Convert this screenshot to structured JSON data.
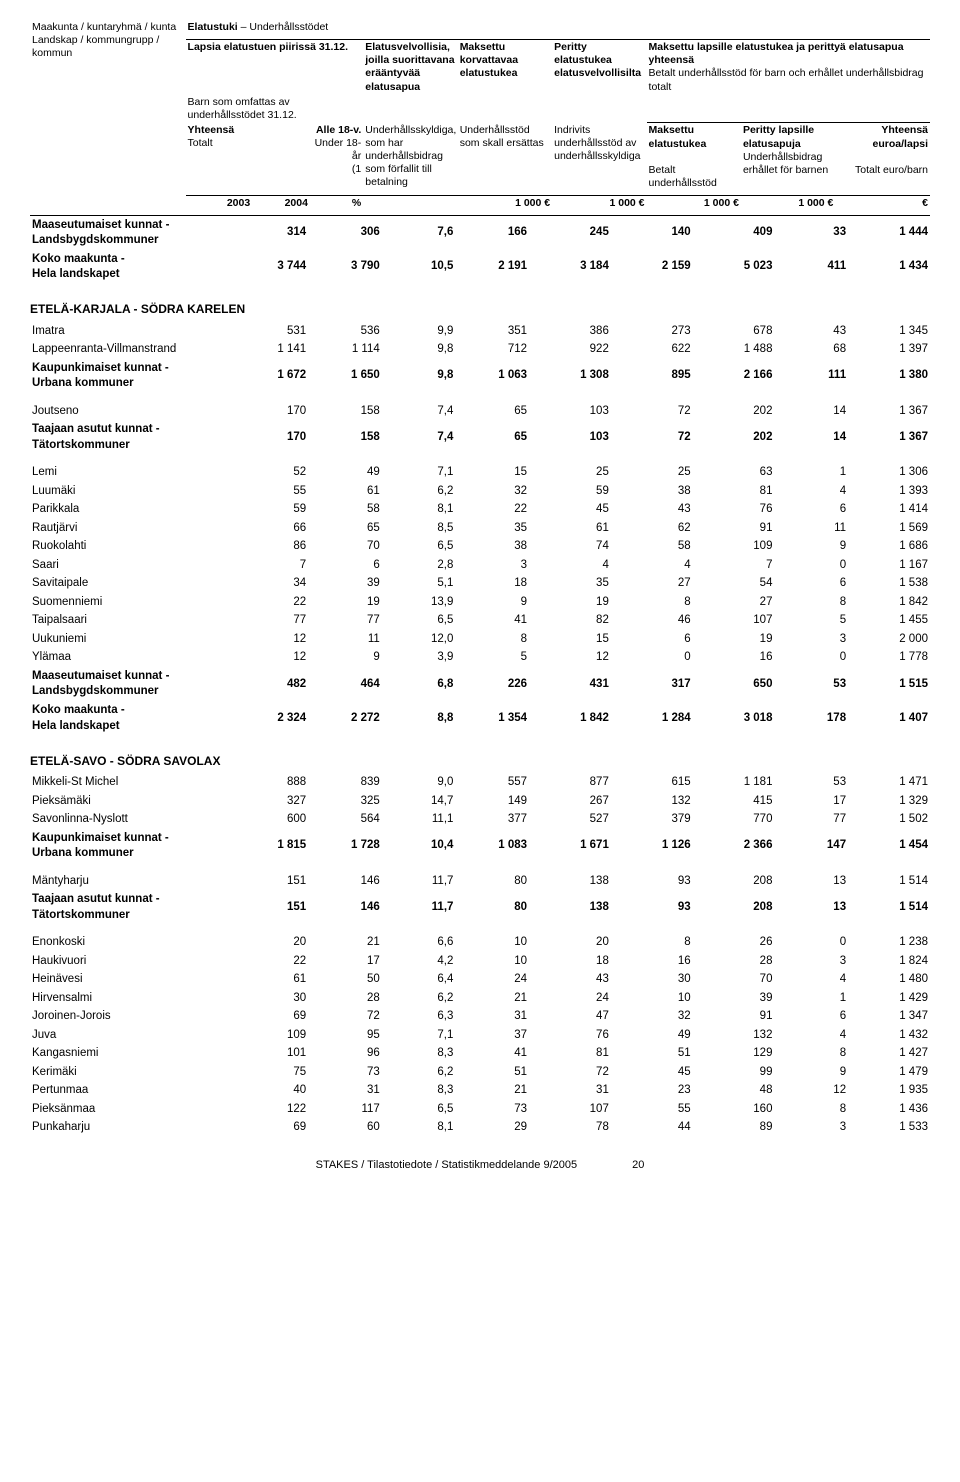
{
  "header": {
    "col1_fi": "Maakunta / kuntaryhmä / kunta",
    "col1_sv": "Landskap / kommungrupp / kommun",
    "top_fi": "Elatustuki",
    "top_sep": "–",
    "top_sv": "Underhållsstödet",
    "col2_fi_1": "Lapsia elatustuen piirissä 31.12.",
    "col2_sv_1": "Barn som omfattas av underhållsstödet 31.12.",
    "col2_fi_yht": "Yhteensä",
    "col2_sv_tot": "Totalt",
    "col3_fi": "Alle 18-v.",
    "col3_sv": "Under 18-år",
    "col3_unit": "(1",
    "col4_fi": "Elatusvelvollisia, joilla suorittavana erääntyvää elatusapua",
    "col4_sv": "Underhållsskyldiga, som har underhållsbidrag som förfallit till betalning",
    "col5_fi": "Maksettu korvattavaa elatustukea",
    "col5_sv": "Underhållsstöd som skall ersättas",
    "col6_fi": "Peritty elatustukea elatusvelvollisilta",
    "col6_sv": "Indrivits underhållsstöd av underhållsskyldiga",
    "col789_fi": "Maksettu lapsille elatustukea ja perittyä elatusapua yhteensä",
    "col789_sv": "Betalt underhållsstöd för barn och erhållet underhållsbidrag totalt",
    "col7_fi": "Maksettu elatustukea",
    "col7_sv": "Betalt underhållsstöd",
    "col8_fi": "Peritty lapsille elatusapuja",
    "col8_sv": "Underhållsbidrag erhållet för barnen",
    "col9_fi": "Yhteensä euroa/lapsi",
    "col9_sv": "Totalt euro/barn",
    "yr_2003": "2003",
    "yr_2004": "2004",
    "pct": "%",
    "u1000": "1 000 €",
    "eur": "€"
  },
  "intro_rows": [
    {
      "label": "Maaseutumaiset kunnat - Landsbygdskommuner",
      "bold": true,
      "c": [
        "314",
        "306",
        "7,6",
        "166",
        "245",
        "140",
        "409",
        "33",
        "1 444"
      ]
    },
    {
      "label": "Koko maakunta - Hela landskapet",
      "bold": true,
      "c": [
        "3 744",
        "3 790",
        "10,5",
        "2 191",
        "3 184",
        "2 159",
        "5 023",
        "411",
        "1 434"
      ]
    }
  ],
  "sections": [
    {
      "title": "ETELÄ-KARJALA - SÖDRA KARELEN",
      "rows": [
        {
          "label": "Imatra",
          "c": [
            "531",
            "536",
            "9,9",
            "351",
            "386",
            "273",
            "678",
            "43",
            "1 345"
          ]
        },
        {
          "label": "Lappeenranta-Villmanstrand",
          "c": [
            "1 141",
            "1 114",
            "9,8",
            "712",
            "922",
            "622",
            "1 488",
            "68",
            "1 397"
          ]
        },
        {
          "label": "Kaupunkimaiset kunnat - Urbana kommuner",
          "bold": true,
          "c": [
            "1 672",
            "1 650",
            "9,8",
            "1 063",
            "1 308",
            "895",
            "2 166",
            "111",
            "1 380"
          ]
        },
        {
          "spacer": true
        },
        {
          "label": "Joutseno",
          "c": [
            "170",
            "158",
            "7,4",
            "65",
            "103",
            "72",
            "202",
            "14",
            "1 367"
          ]
        },
        {
          "label": "Taajaan asutut kunnat - Tätortskommuner",
          "bold": true,
          "c": [
            "170",
            "158",
            "7,4",
            "65",
            "103",
            "72",
            "202",
            "14",
            "1 367"
          ]
        },
        {
          "spacer": true
        },
        {
          "label": "Lemi",
          "c": [
            "52",
            "49",
            "7,1",
            "15",
            "25",
            "25",
            "63",
            "1",
            "1 306"
          ]
        },
        {
          "label": "Luumäki",
          "c": [
            "55",
            "61",
            "6,2",
            "32",
            "59",
            "38",
            "81",
            "4",
            "1 393"
          ]
        },
        {
          "label": "Parikkala",
          "c": [
            "59",
            "58",
            "8,1",
            "22",
            "45",
            "43",
            "76",
            "6",
            "1 414"
          ]
        },
        {
          "label": "Rautjärvi",
          "c": [
            "66",
            "65",
            "8,5",
            "35",
            "61",
            "62",
            "91",
            "11",
            "1 569"
          ]
        },
        {
          "label": "Ruokolahti",
          "c": [
            "86",
            "70",
            "6,5",
            "38",
            "74",
            "58",
            "109",
            "9",
            "1 686"
          ]
        },
        {
          "label": "Saari",
          "c": [
            "7",
            "6",
            "2,8",
            "3",
            "4",
            "4",
            "7",
            "0",
            "1 167"
          ]
        },
        {
          "label": "Savitaipale",
          "c": [
            "34",
            "39",
            "5,1",
            "18",
            "35",
            "27",
            "54",
            "6",
            "1 538"
          ]
        },
        {
          "label": "Suomenniemi",
          "c": [
            "22",
            "19",
            "13,9",
            "9",
            "19",
            "8",
            "27",
            "8",
            "1 842"
          ]
        },
        {
          "label": "Taipalsaari",
          "c": [
            "77",
            "77",
            "6,5",
            "41",
            "82",
            "46",
            "107",
            "5",
            "1 455"
          ]
        },
        {
          "label": "Uukuniemi",
          "c": [
            "12",
            "11",
            "12,0",
            "8",
            "15",
            "6",
            "19",
            "3",
            "2 000"
          ]
        },
        {
          "label": "Ylämaa",
          "c": [
            "12",
            "9",
            "3,9",
            "5",
            "12",
            "0",
            "16",
            "0",
            "1 778"
          ]
        },
        {
          "label": "Maaseutumaiset kunnat - Landsbygdskommuner",
          "bold": true,
          "c": [
            "482",
            "464",
            "6,8",
            "226",
            "431",
            "317",
            "650",
            "53",
            "1 515"
          ]
        },
        {
          "label": "Koko maakunta - Hela landskapet",
          "bold": true,
          "c": [
            "2 324",
            "2 272",
            "8,8",
            "1 354",
            "1 842",
            "1 284",
            "3 018",
            "178",
            "1 407"
          ]
        }
      ]
    },
    {
      "title": "ETELÄ-SAVO - SÖDRA SAVOLAX",
      "rows": [
        {
          "label": "Mikkeli-St Michel",
          "c": [
            "888",
            "839",
            "9,0",
            "557",
            "877",
            "615",
            "1 181",
            "53",
            "1 471"
          ]
        },
        {
          "label": "Pieksämäki",
          "c": [
            "327",
            "325",
            "14,7",
            "149",
            "267",
            "132",
            "415",
            "17",
            "1 329"
          ]
        },
        {
          "label": "Savonlinna-Nyslott",
          "c": [
            "600",
            "564",
            "11,1",
            "377",
            "527",
            "379",
            "770",
            "77",
            "1 502"
          ]
        },
        {
          "label": "Kaupunkimaiset kunnat - Urbana kommuner",
          "bold": true,
          "c": [
            "1 815",
            "1 728",
            "10,4",
            "1 083",
            "1 671",
            "1 126",
            "2 366",
            "147",
            "1 454"
          ]
        },
        {
          "spacer": true
        },
        {
          "label": "Mäntyharju",
          "c": [
            "151",
            "146",
            "11,7",
            "80",
            "138",
            "93",
            "208",
            "13",
            "1 514"
          ]
        },
        {
          "label": "Taajaan asutut kunnat - Tätortskommuner",
          "bold": true,
          "c": [
            "151",
            "146",
            "11,7",
            "80",
            "138",
            "93",
            "208",
            "13",
            "1 514"
          ]
        },
        {
          "spacer": true
        },
        {
          "label": "Enonkoski",
          "c": [
            "20",
            "21",
            "6,6",
            "10",
            "20",
            "8",
            "26",
            "0",
            "1 238"
          ]
        },
        {
          "label": "Haukivuori",
          "c": [
            "22",
            "17",
            "4,2",
            "10",
            "18",
            "16",
            "28",
            "3",
            "1 824"
          ]
        },
        {
          "label": "Heinävesi",
          "c": [
            "61",
            "50",
            "6,4",
            "24",
            "43",
            "30",
            "70",
            "4",
            "1 480"
          ]
        },
        {
          "label": "Hirvensalmi",
          "c": [
            "30",
            "28",
            "6,2",
            "21",
            "24",
            "10",
            "39",
            "1",
            "1 429"
          ]
        },
        {
          "label": "Joroinen-Jorois",
          "c": [
            "69",
            "72",
            "6,3",
            "31",
            "47",
            "32",
            "91",
            "6",
            "1 347"
          ]
        },
        {
          "label": "Juva",
          "c": [
            "109",
            "95",
            "7,1",
            "37",
            "76",
            "49",
            "132",
            "4",
            "1 432"
          ]
        },
        {
          "label": "Kangasniemi",
          "c": [
            "101",
            "96",
            "8,3",
            "41",
            "81",
            "51",
            "129",
            "8",
            "1 427"
          ]
        },
        {
          "label": "Kerimäki",
          "c": [
            "75",
            "73",
            "6,2",
            "51",
            "72",
            "45",
            "99",
            "9",
            "1 479"
          ]
        },
        {
          "label": "Pertunmaa",
          "c": [
            "40",
            "31",
            "8,3",
            "21",
            "31",
            "23",
            "48",
            "12",
            "1 935"
          ]
        },
        {
          "label": "Pieksänmaa",
          "c": [
            "122",
            "117",
            "6,5",
            "73",
            "107",
            "55",
            "160",
            "8",
            "1 436"
          ]
        },
        {
          "label": "Punkaharju",
          "c": [
            "69",
            "60",
            "8,1",
            "29",
            "78",
            "44",
            "89",
            "3",
            "1 533"
          ]
        }
      ]
    }
  ],
  "footer": {
    "left": "STAKES / Tilastotiedote / Statistikmeddelande 9/2005",
    "page": "20"
  }
}
